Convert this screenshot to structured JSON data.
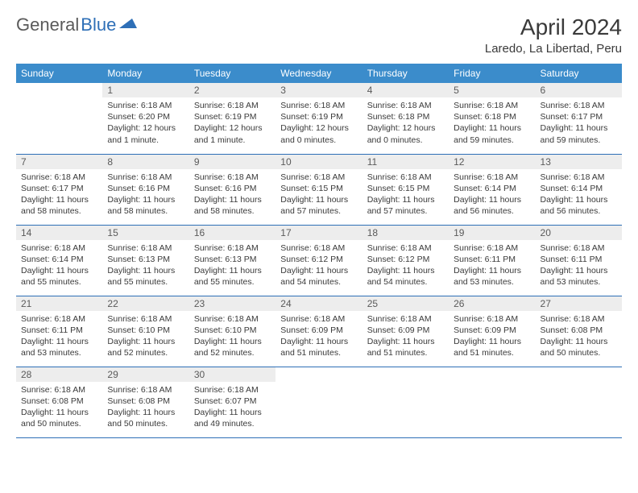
{
  "logo": {
    "part1": "General",
    "part2": "Blue"
  },
  "title": "April 2024",
  "location": "Laredo, La Libertad, Peru",
  "colors": {
    "header_bg": "#3b8ccb",
    "header_text": "#ffffff",
    "daynum_bg": "#ededed",
    "text": "#3a3a3a",
    "rule": "#2e6fb7",
    "logo_gray": "#5a5a5a",
    "logo_blue": "#2e6fb7"
  },
  "weekdays": [
    "Sunday",
    "Monday",
    "Tuesday",
    "Wednesday",
    "Thursday",
    "Friday",
    "Saturday"
  ],
  "weeks": [
    [
      {
        "num": "",
        "lines": [
          "",
          "",
          "",
          ""
        ]
      },
      {
        "num": "1",
        "lines": [
          "Sunrise: 6:18 AM",
          "Sunset: 6:20 PM",
          "Daylight: 12 hours",
          "and 1 minute."
        ]
      },
      {
        "num": "2",
        "lines": [
          "Sunrise: 6:18 AM",
          "Sunset: 6:19 PM",
          "Daylight: 12 hours",
          "and 1 minute."
        ]
      },
      {
        "num": "3",
        "lines": [
          "Sunrise: 6:18 AM",
          "Sunset: 6:19 PM",
          "Daylight: 12 hours",
          "and 0 minutes."
        ]
      },
      {
        "num": "4",
        "lines": [
          "Sunrise: 6:18 AM",
          "Sunset: 6:18 PM",
          "Daylight: 12 hours",
          "and 0 minutes."
        ]
      },
      {
        "num": "5",
        "lines": [
          "Sunrise: 6:18 AM",
          "Sunset: 6:18 PM",
          "Daylight: 11 hours",
          "and 59 minutes."
        ]
      },
      {
        "num": "6",
        "lines": [
          "Sunrise: 6:18 AM",
          "Sunset: 6:17 PM",
          "Daylight: 11 hours",
          "and 59 minutes."
        ]
      }
    ],
    [
      {
        "num": "7",
        "lines": [
          "Sunrise: 6:18 AM",
          "Sunset: 6:17 PM",
          "Daylight: 11 hours",
          "and 58 minutes."
        ]
      },
      {
        "num": "8",
        "lines": [
          "Sunrise: 6:18 AM",
          "Sunset: 6:16 PM",
          "Daylight: 11 hours",
          "and 58 minutes."
        ]
      },
      {
        "num": "9",
        "lines": [
          "Sunrise: 6:18 AM",
          "Sunset: 6:16 PM",
          "Daylight: 11 hours",
          "and 58 minutes."
        ]
      },
      {
        "num": "10",
        "lines": [
          "Sunrise: 6:18 AM",
          "Sunset: 6:15 PM",
          "Daylight: 11 hours",
          "and 57 minutes."
        ]
      },
      {
        "num": "11",
        "lines": [
          "Sunrise: 6:18 AM",
          "Sunset: 6:15 PM",
          "Daylight: 11 hours",
          "and 57 minutes."
        ]
      },
      {
        "num": "12",
        "lines": [
          "Sunrise: 6:18 AM",
          "Sunset: 6:14 PM",
          "Daylight: 11 hours",
          "and 56 minutes."
        ]
      },
      {
        "num": "13",
        "lines": [
          "Sunrise: 6:18 AM",
          "Sunset: 6:14 PM",
          "Daylight: 11 hours",
          "and 56 minutes."
        ]
      }
    ],
    [
      {
        "num": "14",
        "lines": [
          "Sunrise: 6:18 AM",
          "Sunset: 6:14 PM",
          "Daylight: 11 hours",
          "and 55 minutes."
        ]
      },
      {
        "num": "15",
        "lines": [
          "Sunrise: 6:18 AM",
          "Sunset: 6:13 PM",
          "Daylight: 11 hours",
          "and 55 minutes."
        ]
      },
      {
        "num": "16",
        "lines": [
          "Sunrise: 6:18 AM",
          "Sunset: 6:13 PM",
          "Daylight: 11 hours",
          "and 55 minutes."
        ]
      },
      {
        "num": "17",
        "lines": [
          "Sunrise: 6:18 AM",
          "Sunset: 6:12 PM",
          "Daylight: 11 hours",
          "and 54 minutes."
        ]
      },
      {
        "num": "18",
        "lines": [
          "Sunrise: 6:18 AM",
          "Sunset: 6:12 PM",
          "Daylight: 11 hours",
          "and 54 minutes."
        ]
      },
      {
        "num": "19",
        "lines": [
          "Sunrise: 6:18 AM",
          "Sunset: 6:11 PM",
          "Daylight: 11 hours",
          "and 53 minutes."
        ]
      },
      {
        "num": "20",
        "lines": [
          "Sunrise: 6:18 AM",
          "Sunset: 6:11 PM",
          "Daylight: 11 hours",
          "and 53 minutes."
        ]
      }
    ],
    [
      {
        "num": "21",
        "lines": [
          "Sunrise: 6:18 AM",
          "Sunset: 6:11 PM",
          "Daylight: 11 hours",
          "and 53 minutes."
        ]
      },
      {
        "num": "22",
        "lines": [
          "Sunrise: 6:18 AM",
          "Sunset: 6:10 PM",
          "Daylight: 11 hours",
          "and 52 minutes."
        ]
      },
      {
        "num": "23",
        "lines": [
          "Sunrise: 6:18 AM",
          "Sunset: 6:10 PM",
          "Daylight: 11 hours",
          "and 52 minutes."
        ]
      },
      {
        "num": "24",
        "lines": [
          "Sunrise: 6:18 AM",
          "Sunset: 6:09 PM",
          "Daylight: 11 hours",
          "and 51 minutes."
        ]
      },
      {
        "num": "25",
        "lines": [
          "Sunrise: 6:18 AM",
          "Sunset: 6:09 PM",
          "Daylight: 11 hours",
          "and 51 minutes."
        ]
      },
      {
        "num": "26",
        "lines": [
          "Sunrise: 6:18 AM",
          "Sunset: 6:09 PM",
          "Daylight: 11 hours",
          "and 51 minutes."
        ]
      },
      {
        "num": "27",
        "lines": [
          "Sunrise: 6:18 AM",
          "Sunset: 6:08 PM",
          "Daylight: 11 hours",
          "and 50 minutes."
        ]
      }
    ],
    [
      {
        "num": "28",
        "lines": [
          "Sunrise: 6:18 AM",
          "Sunset: 6:08 PM",
          "Daylight: 11 hours",
          "and 50 minutes."
        ]
      },
      {
        "num": "29",
        "lines": [
          "Sunrise: 6:18 AM",
          "Sunset: 6:08 PM",
          "Daylight: 11 hours",
          "and 50 minutes."
        ]
      },
      {
        "num": "30",
        "lines": [
          "Sunrise: 6:18 AM",
          "Sunset: 6:07 PM",
          "Daylight: 11 hours",
          "and 49 minutes."
        ]
      },
      {
        "num": "",
        "lines": [
          "",
          "",
          "",
          ""
        ]
      },
      {
        "num": "",
        "lines": [
          "",
          "",
          "",
          ""
        ]
      },
      {
        "num": "",
        "lines": [
          "",
          "",
          "",
          ""
        ]
      },
      {
        "num": "",
        "lines": [
          "",
          "",
          "",
          ""
        ]
      }
    ]
  ]
}
